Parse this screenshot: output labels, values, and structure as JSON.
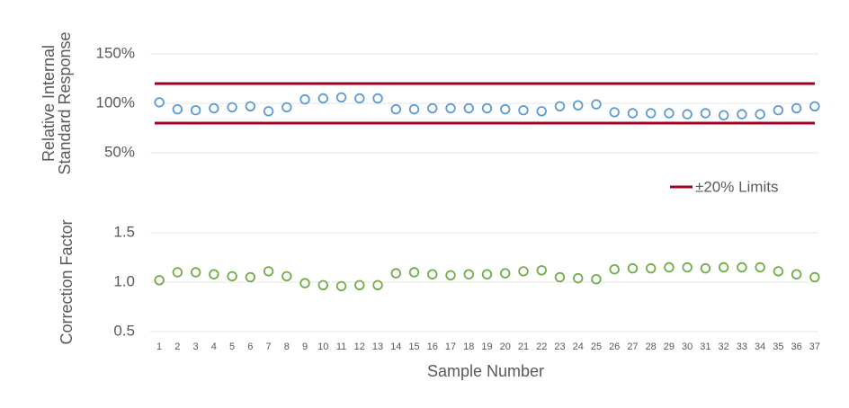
{
  "chart_data": [
    {
      "type": "scatter",
      "ylabel": [
        "Relative Internal",
        "Standard Response"
      ],
      "values": [
        101,
        94,
        93,
        95,
        96,
        97,
        92,
        96,
        104,
        105,
        106,
        105,
        105,
        94,
        94,
        95,
        95,
        95,
        95,
        94,
        93,
        92,
        97,
        98,
        99,
        91,
        90,
        90,
        90,
        89,
        90,
        88,
        89,
        89,
        93,
        95,
        97
      ],
      "color": "#5b9bd5",
      "ylim": [
        50,
        150
      ],
      "yticks": [
        {
          "value": 50,
          "label": "50%"
        },
        {
          "value": 100,
          "label": "100%"
        },
        {
          "value": 150,
          "label": "150%"
        }
      ],
      "grid": true,
      "limits": [
        120,
        80
      ],
      "limits_label": "±20% Limits",
      "limits_color": "#a50021"
    },
    {
      "type": "scatter",
      "ylabel": "Correction Factor",
      "xlabel": "Sample Number",
      "categories": [
        "1",
        "2",
        "3",
        "4",
        "5",
        "6",
        "7",
        "8",
        "9",
        "10",
        "11",
        "12",
        "13",
        "14",
        "15",
        "16",
        "17",
        "18",
        "19",
        "20",
        "21",
        "22",
        "23",
        "24",
        "25",
        "26",
        "27",
        "28",
        "29",
        "30",
        "31",
        "32",
        "33",
        "34",
        "35",
        "36",
        "37"
      ],
      "values": [
        1.02,
        1.1,
        1.1,
        1.08,
        1.06,
        1.05,
        1.11,
        1.06,
        0.99,
        0.97,
        0.96,
        0.97,
        0.97,
        1.09,
        1.1,
        1.08,
        1.07,
        1.08,
        1.08,
        1.09,
        1.11,
        1.12,
        1.05,
        1.04,
        1.03,
        1.13,
        1.14,
        1.14,
        1.15,
        1.15,
        1.14,
        1.15,
        1.15,
        1.15,
        1.11,
        1.08,
        1.05
      ],
      "color": "#70ad47",
      "ylim": [
        0.5,
        1.5
      ],
      "yticks": [
        0.5,
        {
          "value": 1,
          "label": "1.0"
        },
        1.5
      ],
      "grid": true
    }
  ]
}
